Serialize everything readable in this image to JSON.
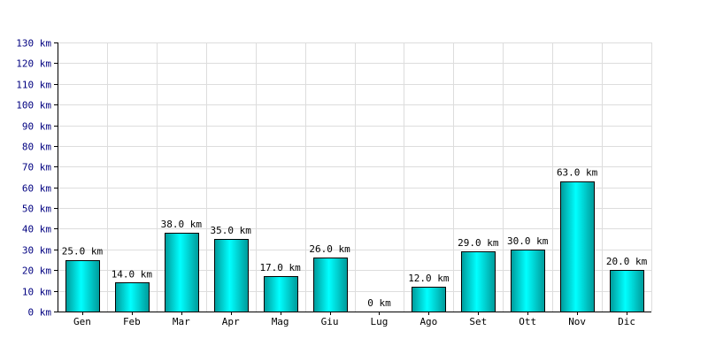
{
  "chart_data": {
    "type": "bar",
    "unit": "km",
    "categories": [
      "Gen",
      "Feb",
      "Mar",
      "Apr",
      "Mag",
      "Giu",
      "Lug",
      "Ago",
      "Set",
      "Ott",
      "Nov",
      "Dic"
    ],
    "values": [
      25.0,
      14.0,
      38.0,
      35.0,
      17.0,
      26.0,
      0,
      12.0,
      29.0,
      30.0,
      63.0,
      20.0
    ],
    "data_labels": [
      "25.0 km",
      "14.0 km",
      "38.0 km",
      "35.0 km",
      "17.0 km",
      "26.0 km",
      "0 km",
      "12.0 km",
      "29.0 km",
      "30.0 km",
      "63.0 km",
      "20.0 km"
    ],
    "y_ticks": [
      0,
      10,
      20,
      30,
      40,
      50,
      60,
      70,
      80,
      90,
      100,
      110,
      120,
      130
    ],
    "y_tick_labels": [
      "0 km",
      "10 km",
      "20 km",
      "30 km",
      "40 km",
      "50 km",
      "60 km",
      "70 km",
      "80 km",
      "90 km",
      "100 km",
      "110 km",
      "120 km",
      "130 km"
    ],
    "ylim": [
      0,
      130
    ],
    "grid": true,
    "title": "",
    "xlabel": "",
    "ylabel": "",
    "colors": {
      "bar_light": "#00ffff",
      "bar_dark": "#009999",
      "bar_outline": "#000000",
      "grid": "#dddddd",
      "axis": "#000000",
      "tick_text": "#000080"
    }
  }
}
